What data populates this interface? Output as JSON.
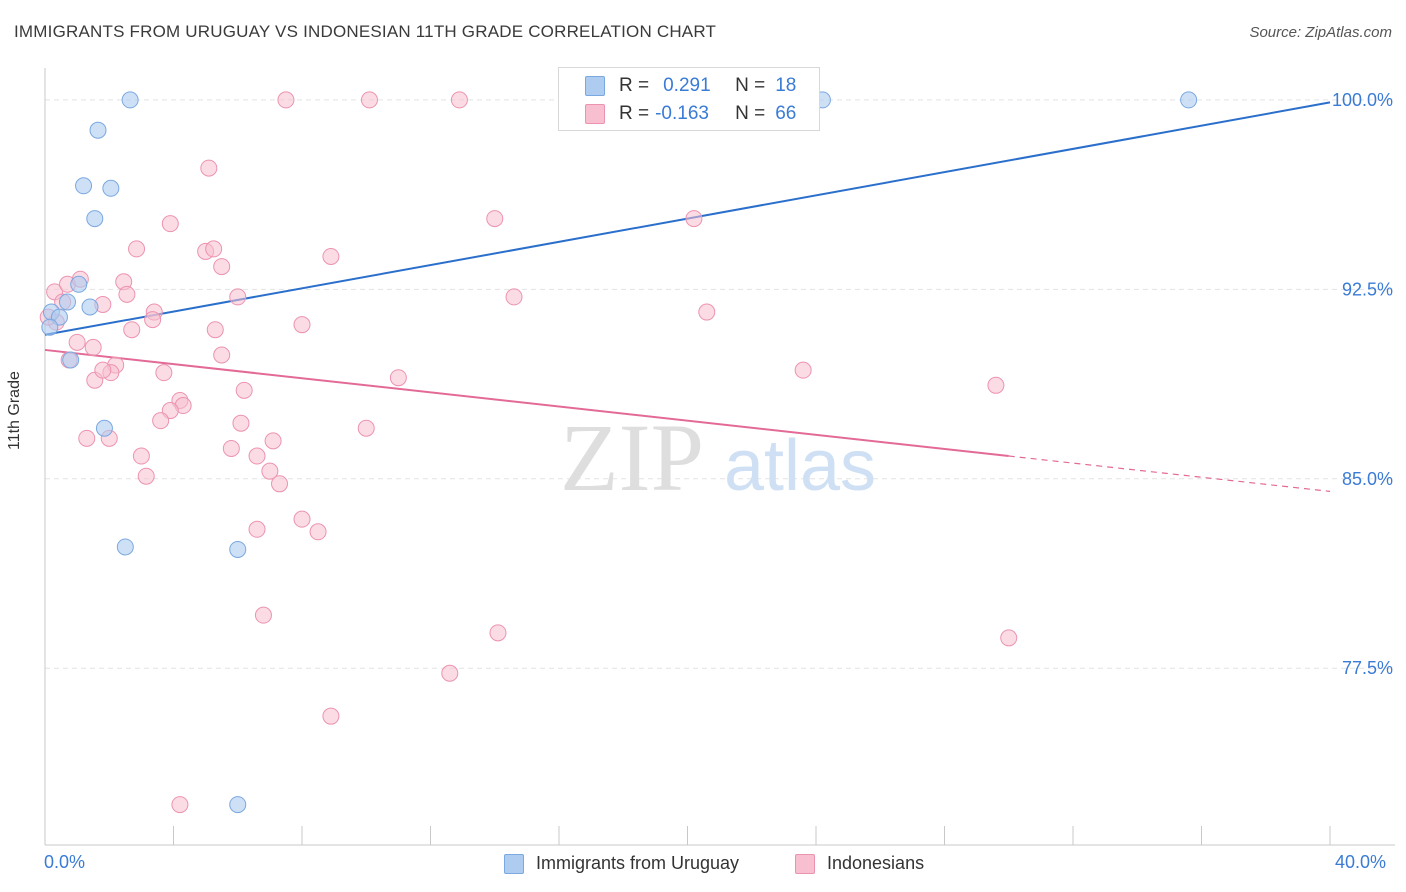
{
  "title": "IMMIGRANTS FROM URUGUAY VS INDONESIAN 11TH GRADE CORRELATION CHART",
  "source": "Source: ZipAtlas.com",
  "watermark": {
    "zip": "ZIP",
    "atlas": "atlas"
  },
  "legend_top": {
    "row1": {
      "r_label": "R =",
      "r_value": "0.291",
      "n_label": "N =",
      "n_value": "18"
    },
    "row2": {
      "r_label": "R =",
      "r_value": "-0.163",
      "n_label": "N =",
      "n_value": "66"
    }
  },
  "legend_bottom": {
    "series1": "Immigrants from Uruguay",
    "series2": "Indonesians"
  },
  "colors": {
    "blue_fill": "#aecbf0",
    "blue_stroke": "#7aa8e0",
    "blue_line": "#2a6fcb",
    "pink_fill": "#f7bfd0",
    "pink_stroke": "#ec93b0",
    "pink_line": "#e36a96",
    "axis_label": "#3a7bd5"
  },
  "chart_data": {
    "type": "scatter",
    "title": "IMMIGRANTS FROM URUGUAY VS INDONESIAN 11TH GRADE CORRELATION CHART",
    "xlabel": "",
    "ylabel": "11th Grade",
    "xlim": [
      0,
      40
    ],
    "ylim": [
      70.5,
      101.5
    ],
    "x_tick_labels": [
      "0.0%",
      "40.0%"
    ],
    "y_ticks": [
      77.5,
      85.0,
      92.5,
      100.0
    ],
    "y_tick_labels": [
      "77.5%",
      "85.0%",
      "92.5%",
      "100.0%"
    ],
    "grid": true,
    "series": [
      {
        "name": "Immigrants from Uruguay",
        "R": 0.291,
        "N": 18,
        "trend": {
          "x0": 0,
          "y0": 90.7,
          "x1": 40,
          "y1": 99.9
        },
        "points": [
          [
            2.65,
            100.0
          ],
          [
            1.65,
            98.8
          ],
          [
            1.2,
            96.6
          ],
          [
            2.05,
            96.5
          ],
          [
            1.55,
            95.3
          ],
          [
            1.05,
            92.7
          ],
          [
            1.4,
            91.8
          ],
          [
            0.2,
            91.6
          ],
          [
            0.45,
            91.4
          ],
          [
            0.7,
            92.0
          ],
          [
            0.15,
            91.0
          ],
          [
            0.8,
            89.7
          ],
          [
            1.85,
            87.0
          ],
          [
            2.5,
            82.3
          ],
          [
            6.0,
            82.2
          ],
          [
            6.0,
            72.1
          ],
          [
            24.2,
            100.0
          ],
          [
            35.6,
            100.0
          ]
        ]
      },
      {
        "name": "Indonesians",
        "R": -0.163,
        "N": 66,
        "trend": {
          "x0": 0,
          "y0": 90.1,
          "x1": 30.0,
          "y1": 85.9,
          "dash_to_x": 40,
          "dash_to_y": 84.5
        },
        "points": [
          [
            7.5,
            100.0
          ],
          [
            10.1,
            100.0
          ],
          [
            12.9,
            100.0
          ],
          [
            5.1,
            97.3
          ],
          [
            3.9,
            95.1
          ],
          [
            5.0,
            94.0
          ],
          [
            5.25,
            94.1
          ],
          [
            2.85,
            94.1
          ],
          [
            5.5,
            93.4
          ],
          [
            8.9,
            93.8
          ],
          [
            0.3,
            92.4
          ],
          [
            0.7,
            92.7
          ],
          [
            1.1,
            92.9
          ],
          [
            2.45,
            92.8
          ],
          [
            2.55,
            92.3
          ],
          [
            6.0,
            92.2
          ],
          [
            14.6,
            92.2
          ],
          [
            0.55,
            92.0
          ],
          [
            1.8,
            91.9
          ],
          [
            3.4,
            91.6
          ],
          [
            3.35,
            91.3
          ],
          [
            0.35,
            91.2
          ],
          [
            5.3,
            90.9
          ],
          [
            2.7,
            90.9
          ],
          [
            8.0,
            91.1
          ],
          [
            1.0,
            90.4
          ],
          [
            1.5,
            90.2
          ],
          [
            5.5,
            89.9
          ],
          [
            0.75,
            89.7
          ],
          [
            2.2,
            89.5
          ],
          [
            2.05,
            89.2
          ],
          [
            3.7,
            89.2
          ],
          [
            1.55,
            88.9
          ],
          [
            1.8,
            89.3
          ],
          [
            6.2,
            88.5
          ],
          [
            11.0,
            89.0
          ],
          [
            23.6,
            89.3
          ],
          [
            29.6,
            88.7
          ],
          [
            4.2,
            88.1
          ],
          [
            4.3,
            87.9
          ],
          [
            3.9,
            87.7
          ],
          [
            3.6,
            87.3
          ],
          [
            6.1,
            87.2
          ],
          [
            10.0,
            87.0
          ],
          [
            1.3,
            86.6
          ],
          [
            2.0,
            86.6
          ],
          [
            5.8,
            86.2
          ],
          [
            7.1,
            86.5
          ],
          [
            3.0,
            85.9
          ],
          [
            6.6,
            85.9
          ],
          [
            7.0,
            85.3
          ],
          [
            3.15,
            85.1
          ],
          [
            7.3,
            84.8
          ],
          [
            8.0,
            83.4
          ],
          [
            8.5,
            82.9
          ],
          [
            6.6,
            83.0
          ],
          [
            14.0,
            95.3
          ],
          [
            20.2,
            95.3
          ],
          [
            20.6,
            91.6
          ],
          [
            6.8,
            79.6
          ],
          [
            14.1,
            78.9
          ],
          [
            30.0,
            78.7
          ],
          [
            12.6,
            77.3
          ],
          [
            8.9,
            75.6
          ],
          [
            4.2,
            72.1
          ],
          [
            0.1,
            91.4
          ]
        ]
      }
    ]
  }
}
